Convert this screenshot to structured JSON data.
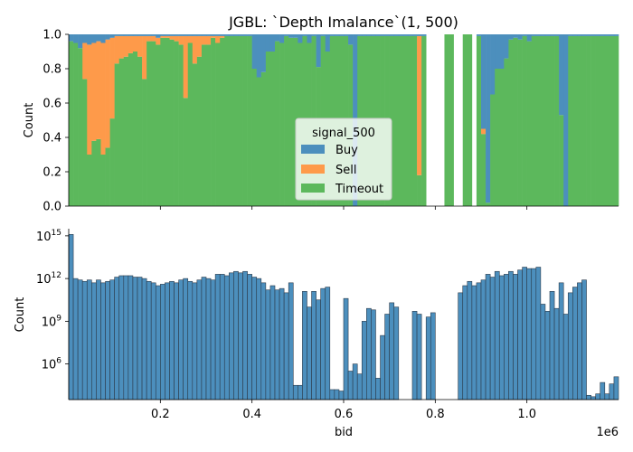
{
  "colors": {
    "buy": "#4c8fbd",
    "sell": "#fe9a4a",
    "timeout": "#5cb85c",
    "bar_edge": "#2b3a4a"
  },
  "chart_data": [
    {
      "type": "bar",
      "stacked": "fill",
      "title": "JGBL: `Depth Imalance`(1, 500)",
      "xlabel": "",
      "ylabel": "Count",
      "ylim": [
        0,
        1.0
      ],
      "yticks": [
        0.0,
        0.2,
        0.4,
        0.6,
        0.8,
        1.0
      ],
      "ytick_labels": [
        "0.0",
        "0.2",
        "0.4",
        "0.6",
        "0.8",
        "1.0"
      ],
      "xlim": [
        0,
        1200000
      ],
      "bin_width": 10000,
      "legend": {
        "title": "signal_500",
        "placement": "center-right",
        "entries": [
          "Buy",
          "Sell",
          "Timeout"
        ]
      },
      "series": [
        {
          "name": "Buy",
          "values": [
            0.04,
            0.05,
            0.08,
            0.05,
            0.06,
            0.05,
            0.04,
            0.05,
            0.03,
            0.02,
            0.01,
            0.01,
            0.01,
            0.01,
            0.01,
            0.01,
            0.01,
            0.01,
            0.01,
            0.02,
            0.01,
            0.01,
            0.01,
            0.01,
            0.01,
            0.01,
            0.01,
            0.01,
            0.01,
            0.01,
            0.01,
            0.01,
            0.01,
            0.01,
            0.01,
            0.01,
            0.01,
            0.01,
            0.01,
            0.01,
            0.2,
            0.25,
            0.22,
            0.1,
            0.1,
            0.04,
            0.05,
            0.01,
            0.02,
            0.02,
            0.05,
            0.01,
            0.05,
            0.01,
            0.19,
            0.01,
            0.1,
            0.01,
            0.01,
            0.01,
            0.01,
            0.06,
            1.0,
            0.01,
            0.01,
            0.01,
            0.01,
            0.01,
            0.01,
            0.01,
            0.01,
            0.01,
            0.01,
            0.01,
            0.01,
            0.01,
            0.01,
            0.01,
            0.0,
            0.0,
            0.0,
            0.0,
            0.0,
            0.0,
            0.0,
            0.0,
            0.0,
            0.0,
            0.0,
            0.01,
            0.55,
            0.98,
            0.35,
            0.2,
            0.2,
            0.14,
            0.03,
            0.02,
            0.03,
            0.01,
            0.04,
            0.01,
            0.01,
            0.01,
            0.01,
            0.01,
            0.01,
            0.47,
            1.0,
            0.01,
            0.01,
            0.01,
            0.01,
            0.01,
            0.01,
            0.01,
            0.01,
            0.01,
            0.01,
            0.01
          ]
        },
        {
          "name": "Sell",
          "values": [
            0.0,
            0.0,
            0.0,
            0.21,
            0.64,
            0.57,
            0.57,
            0.65,
            0.63,
            0.47,
            0.16,
            0.13,
            0.12,
            0.1,
            0.09,
            0.12,
            0.25,
            0.03,
            0.03,
            0.04,
            0.01,
            0.01,
            0.02,
            0.03,
            0.05,
            0.36,
            0.04,
            0.16,
            0.12,
            0.05,
            0.05,
            0.01,
            0.04,
            0.01,
            0.0,
            0.0,
            0.0,
            0.0,
            0.0,
            0.0,
            0.0,
            0.0,
            0.0,
            0.0,
            0.0,
            0.0,
            0.0,
            0.0,
            0.0,
            0.0,
            0.0,
            0.0,
            0.0,
            0.0,
            0.0,
            0.0,
            0.0,
            0.0,
            0.0,
            0.0,
            0.0,
            0.0,
            0.0,
            0.0,
            0.0,
            0.0,
            0.0,
            0.0,
            0.0,
            0.0,
            0.0,
            0.0,
            0.0,
            0.0,
            0.0,
            0.0,
            0.81,
            0.0,
            0.0,
            0.0,
            0.0,
            0.0,
            0.0,
            0.0,
            0.0,
            0.0,
            0.0,
            0.0,
            0.0,
            0.0,
            0.03,
            0.0,
            0.0,
            0.0,
            0.0,
            0.0,
            0.0,
            0.0,
            0.0,
            0.0,
            0.0,
            0.0,
            0.0,
            0.0,
            0.0,
            0.0,
            0.0,
            0.0,
            0.0,
            0.0,
            0.0,
            0.0,
            0.0,
            0.0,
            0.0,
            0.0,
            0.0,
            0.0,
            0.0,
            0.0
          ]
        },
        {
          "name": "Timeout",
          "values": [
            0.96,
            0.95,
            0.92,
            0.74,
            0.3,
            0.38,
            0.39,
            0.3,
            0.34,
            0.51,
            0.83,
            0.86,
            0.87,
            0.89,
            0.9,
            0.87,
            0.74,
            0.96,
            0.96,
            0.94,
            0.98,
            0.98,
            0.97,
            0.96,
            0.94,
            0.63,
            0.95,
            0.83,
            0.87,
            0.94,
            0.94,
            0.98,
            0.95,
            0.98,
            0.99,
            0.99,
            0.99,
            0.99,
            0.99,
            0.99,
            0.8,
            0.75,
            0.78,
            0.9,
            0.9,
            0.96,
            0.95,
            0.99,
            0.98,
            0.98,
            0.95,
            0.99,
            0.95,
            0.99,
            0.81,
            0.99,
            0.9,
            0.99,
            0.99,
            0.99,
            0.99,
            0.94,
            0.0,
            0.99,
            0.99,
            0.99,
            0.99,
            0.99,
            0.99,
            0.99,
            0.99,
            0.99,
            0.99,
            0.99,
            0.99,
            0.99,
            0.18,
            0.99,
            0.0,
            0.0,
            0.0,
            0.0,
            1.0,
            1.0,
            0.0,
            0.0,
            1.0,
            1.0,
            0.0,
            0.99,
            0.42,
            0.02,
            0.65,
            0.8,
            0.8,
            0.86,
            0.97,
            0.98,
            0.97,
            0.99,
            0.96,
            0.99,
            0.99,
            0.99,
            0.99,
            0.99,
            0.99,
            0.53,
            0.0,
            0.99,
            0.99,
            0.99,
            0.99,
            0.99,
            0.99,
            0.99,
            0.99,
            0.99,
            0.99,
            0.99
          ]
        }
      ]
    },
    {
      "type": "bar",
      "scale": "log",
      "title": "",
      "xlabel": "bid",
      "ylabel": "Count",
      "x_multiplier": "1e6",
      "xlim": [
        0,
        1200000
      ],
      "xticks": [
        200000,
        400000,
        600000,
        800000,
        1000000
      ],
      "xtick_labels": [
        "0.2",
        "0.4",
        "0.6",
        "0.8",
        "1.0"
      ],
      "yticks": [
        1000000,
        1000000000,
        1000000000000,
        1000000000000000
      ],
      "ytick_bases": [
        "10",
        "10",
        "10",
        "10"
      ],
      "ytick_exponents": [
        "6",
        "9",
        "12",
        "15"
      ],
      "ylim_log10": [
        3.5,
        15.5
      ],
      "bin_width": 10000,
      "values_log10": [
        15.1,
        12.0,
        11.9,
        11.8,
        11.9,
        11.7,
        11.9,
        11.7,
        11.8,
        11.9,
        12.1,
        12.2,
        12.2,
        12.2,
        12.1,
        12.1,
        12.0,
        11.8,
        11.7,
        11.5,
        11.6,
        11.7,
        11.8,
        11.7,
        11.9,
        12.0,
        11.8,
        11.7,
        11.9,
        12.1,
        12.0,
        11.9,
        12.3,
        12.3,
        12.2,
        12.4,
        12.5,
        12.4,
        12.5,
        12.3,
        12.1,
        12.0,
        11.7,
        11.2,
        11.5,
        11.2,
        11.3,
        11.0,
        11.7,
        4.5,
        4.5,
        11.1,
        10.0,
        11.1,
        10.5,
        11.3,
        11.4,
        4.2,
        4.2,
        4.1,
        10.6,
        5.5,
        6.0,
        5.3,
        9.0,
        9.9,
        9.8,
        5.0,
        8.0,
        9.5,
        10.3,
        10.0,
        0.0,
        0.0,
        0.0,
        9.7,
        9.5,
        0.0,
        9.3,
        9.6,
        0.0,
        0.0,
        0.0,
        0.0,
        0.0,
        11.0,
        11.5,
        11.8,
        11.5,
        11.7,
        11.9,
        12.3,
        12.1,
        12.5,
        12.2,
        12.3,
        12.5,
        12.3,
        12.6,
        12.8,
        12.7,
        12.7,
        12.8,
        10.2,
        9.7,
        11.1,
        9.9,
        11.7,
        9.5,
        11.0,
        11.4,
        11.7,
        11.9,
        3.8,
        3.7,
        3.9,
        4.7,
        3.9,
        4.6,
        5.1
      ]
    }
  ]
}
